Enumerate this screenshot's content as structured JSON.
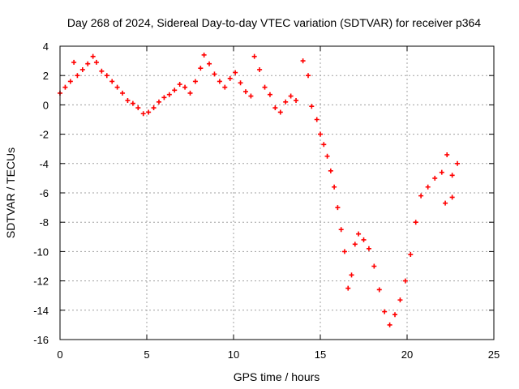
{
  "chart_data": {
    "type": "scatter",
    "title": "Day 268 of 2024, Sidereal Day-to-day VTEC variation (SDTVAR) for receiver p364",
    "xlabel": "GPS time / hours",
    "ylabel": "SDTVAR / TECUs",
    "xlim": [
      0,
      25
    ],
    "ylim": [
      -16,
      4
    ],
    "xticks": [
      0,
      5,
      10,
      15,
      20,
      25
    ],
    "yticks": [
      -16,
      -14,
      -12,
      -10,
      -8,
      -6,
      -4,
      -2,
      0,
      2,
      4
    ],
    "xtick_labels": [
      "0",
      "5",
      "10",
      "15",
      "20",
      "25"
    ],
    "ytick_labels": [
      "-16",
      "-14",
      "-12",
      "-10",
      "-8",
      "-6",
      "-4",
      "-2",
      "0",
      "2",
      "4"
    ],
    "grid": true,
    "marker": "plus",
    "color": "#ff0000",
    "series": [
      {
        "name": "p364",
        "points": [
          [
            0.0,
            0.8
          ],
          [
            0.3,
            1.2
          ],
          [
            0.6,
            1.6
          ],
          [
            0.8,
            2.9
          ],
          [
            1.0,
            2.0
          ],
          [
            1.3,
            2.4
          ],
          [
            1.6,
            2.8
          ],
          [
            1.9,
            3.3
          ],
          [
            2.1,
            2.9
          ],
          [
            2.4,
            2.3
          ],
          [
            2.7,
            2.0
          ],
          [
            3.0,
            1.6
          ],
          [
            3.3,
            1.2
          ],
          [
            3.6,
            0.8
          ],
          [
            3.9,
            0.3
          ],
          [
            4.2,
            0.1
          ],
          [
            4.5,
            -0.2
          ],
          [
            4.8,
            -0.6
          ],
          [
            5.1,
            -0.5
          ],
          [
            5.4,
            -0.2
          ],
          [
            5.7,
            0.2
          ],
          [
            6.0,
            0.5
          ],
          [
            6.3,
            0.7
          ],
          [
            6.6,
            1.0
          ],
          [
            6.9,
            1.4
          ],
          [
            7.2,
            1.2
          ],
          [
            7.5,
            0.8
          ],
          [
            7.8,
            1.6
          ],
          [
            8.1,
            2.5
          ],
          [
            8.3,
            3.4
          ],
          [
            8.6,
            2.8
          ],
          [
            8.9,
            2.1
          ],
          [
            9.2,
            1.6
          ],
          [
            9.5,
            1.2
          ],
          [
            9.8,
            1.8
          ],
          [
            10.1,
            2.2
          ],
          [
            10.4,
            1.5
          ],
          [
            10.7,
            0.9
          ],
          [
            11.0,
            0.6
          ],
          [
            11.2,
            3.3
          ],
          [
            11.5,
            2.4
          ],
          [
            11.8,
            1.2
          ],
          [
            12.1,
            0.7
          ],
          [
            12.4,
            -0.2
          ],
          [
            12.7,
            -0.5
          ],
          [
            13.0,
            0.2
          ],
          [
            13.3,
            0.6
          ],
          [
            13.6,
            0.3
          ],
          [
            14.0,
            3.0
          ],
          [
            14.3,
            2.0
          ],
          [
            14.5,
            -0.1
          ],
          [
            14.8,
            -1.0
          ],
          [
            15.0,
            -2.0
          ],
          [
            15.2,
            -2.7
          ],
          [
            15.4,
            -3.5
          ],
          [
            15.6,
            -4.5
          ],
          [
            15.8,
            -5.6
          ],
          [
            16.0,
            -7.0
          ],
          [
            16.2,
            -8.5
          ],
          [
            16.4,
            -10.0
          ],
          [
            16.6,
            -12.5
          ],
          [
            16.8,
            -11.6
          ],
          [
            17.0,
            -9.5
          ],
          [
            17.2,
            -8.8
          ],
          [
            17.5,
            -9.2
          ],
          [
            17.8,
            -9.8
          ],
          [
            18.1,
            -11.0
          ],
          [
            18.4,
            -12.6
          ],
          [
            18.7,
            -14.1
          ],
          [
            19.0,
            -15.0
          ],
          [
            19.3,
            -14.3
          ],
          [
            19.6,
            -13.3
          ],
          [
            19.9,
            -12.0
          ],
          [
            20.2,
            -10.2
          ],
          [
            20.5,
            -8.0
          ],
          [
            20.8,
            -6.2
          ],
          [
            21.2,
            -5.6
          ],
          [
            21.6,
            -5.0
          ],
          [
            22.0,
            -4.6
          ],
          [
            22.3,
            -3.4
          ],
          [
            22.6,
            -4.8
          ],
          [
            22.9,
            -4.0
          ],
          [
            22.2,
            -6.7
          ],
          [
            22.6,
            -6.3
          ]
        ]
      }
    ]
  }
}
